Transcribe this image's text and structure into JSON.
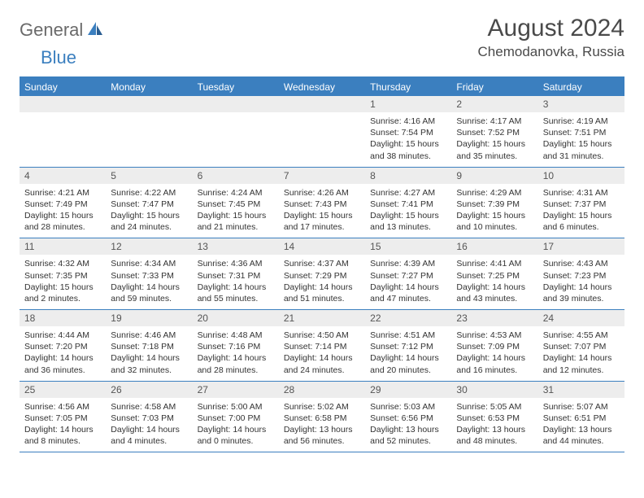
{
  "logo": {
    "text1": "General",
    "text2": "Blue"
  },
  "title": "August 2024",
  "location": "Chemodanovka, Russia",
  "colors": {
    "header_bg": "#3b7fbf",
    "header_text": "#ffffff",
    "daynum_bg": "#ededed",
    "border": "#3b7fbf",
    "body_text": "#333333",
    "logo_gray": "#6a6a6a",
    "logo_blue": "#3b7fbf"
  },
  "day_headers": [
    "Sunday",
    "Monday",
    "Tuesday",
    "Wednesday",
    "Thursday",
    "Friday",
    "Saturday"
  ],
  "weeks": [
    [
      null,
      null,
      null,
      null,
      {
        "n": "1",
        "sr": "4:16 AM",
        "ss": "7:54 PM",
        "dl": "15 hours and 38 minutes."
      },
      {
        "n": "2",
        "sr": "4:17 AM",
        "ss": "7:52 PM",
        "dl": "15 hours and 35 minutes."
      },
      {
        "n": "3",
        "sr": "4:19 AM",
        "ss": "7:51 PM",
        "dl": "15 hours and 31 minutes."
      }
    ],
    [
      {
        "n": "4",
        "sr": "4:21 AM",
        "ss": "7:49 PM",
        "dl": "15 hours and 28 minutes."
      },
      {
        "n": "5",
        "sr": "4:22 AM",
        "ss": "7:47 PM",
        "dl": "15 hours and 24 minutes."
      },
      {
        "n": "6",
        "sr": "4:24 AM",
        "ss": "7:45 PM",
        "dl": "15 hours and 21 minutes."
      },
      {
        "n": "7",
        "sr": "4:26 AM",
        "ss": "7:43 PM",
        "dl": "15 hours and 17 minutes."
      },
      {
        "n": "8",
        "sr": "4:27 AM",
        "ss": "7:41 PM",
        "dl": "15 hours and 13 minutes."
      },
      {
        "n": "9",
        "sr": "4:29 AM",
        "ss": "7:39 PM",
        "dl": "15 hours and 10 minutes."
      },
      {
        "n": "10",
        "sr": "4:31 AM",
        "ss": "7:37 PM",
        "dl": "15 hours and 6 minutes."
      }
    ],
    [
      {
        "n": "11",
        "sr": "4:32 AM",
        "ss": "7:35 PM",
        "dl": "15 hours and 2 minutes."
      },
      {
        "n": "12",
        "sr": "4:34 AM",
        "ss": "7:33 PM",
        "dl": "14 hours and 59 minutes."
      },
      {
        "n": "13",
        "sr": "4:36 AM",
        "ss": "7:31 PM",
        "dl": "14 hours and 55 minutes."
      },
      {
        "n": "14",
        "sr": "4:37 AM",
        "ss": "7:29 PM",
        "dl": "14 hours and 51 minutes."
      },
      {
        "n": "15",
        "sr": "4:39 AM",
        "ss": "7:27 PM",
        "dl": "14 hours and 47 minutes."
      },
      {
        "n": "16",
        "sr": "4:41 AM",
        "ss": "7:25 PM",
        "dl": "14 hours and 43 minutes."
      },
      {
        "n": "17",
        "sr": "4:43 AM",
        "ss": "7:23 PM",
        "dl": "14 hours and 39 minutes."
      }
    ],
    [
      {
        "n": "18",
        "sr": "4:44 AM",
        "ss": "7:20 PM",
        "dl": "14 hours and 36 minutes."
      },
      {
        "n": "19",
        "sr": "4:46 AM",
        "ss": "7:18 PM",
        "dl": "14 hours and 32 minutes."
      },
      {
        "n": "20",
        "sr": "4:48 AM",
        "ss": "7:16 PM",
        "dl": "14 hours and 28 minutes."
      },
      {
        "n": "21",
        "sr": "4:50 AM",
        "ss": "7:14 PM",
        "dl": "14 hours and 24 minutes."
      },
      {
        "n": "22",
        "sr": "4:51 AM",
        "ss": "7:12 PM",
        "dl": "14 hours and 20 minutes."
      },
      {
        "n": "23",
        "sr": "4:53 AM",
        "ss": "7:09 PM",
        "dl": "14 hours and 16 minutes."
      },
      {
        "n": "24",
        "sr": "4:55 AM",
        "ss": "7:07 PM",
        "dl": "14 hours and 12 minutes."
      }
    ],
    [
      {
        "n": "25",
        "sr": "4:56 AM",
        "ss": "7:05 PM",
        "dl": "14 hours and 8 minutes."
      },
      {
        "n": "26",
        "sr": "4:58 AM",
        "ss": "7:03 PM",
        "dl": "14 hours and 4 minutes."
      },
      {
        "n": "27",
        "sr": "5:00 AM",
        "ss": "7:00 PM",
        "dl": "14 hours and 0 minutes."
      },
      {
        "n": "28",
        "sr": "5:02 AM",
        "ss": "6:58 PM",
        "dl": "13 hours and 56 minutes."
      },
      {
        "n": "29",
        "sr": "5:03 AM",
        "ss": "6:56 PM",
        "dl": "13 hours and 52 minutes."
      },
      {
        "n": "30",
        "sr": "5:05 AM",
        "ss": "6:53 PM",
        "dl": "13 hours and 48 minutes."
      },
      {
        "n": "31",
        "sr": "5:07 AM",
        "ss": "6:51 PM",
        "dl": "13 hours and 44 minutes."
      }
    ]
  ],
  "labels": {
    "sunrise": "Sunrise:",
    "sunset": "Sunset:",
    "daylight": "Daylight:"
  }
}
